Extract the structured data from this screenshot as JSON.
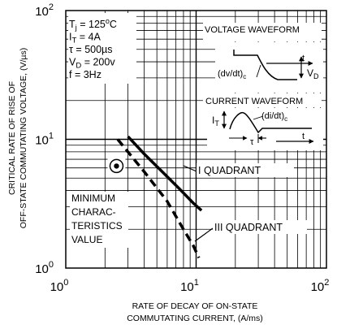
{
  "chart_data": {
    "type": "line",
    "x_scale": "log",
    "y_scale": "log",
    "xlim": [
      1,
      100
    ],
    "ylim": [
      1,
      100
    ],
    "grid": true,
    "x_ticks": [
      {
        "base": "10",
        "exp": "0",
        "value": 1
      },
      {
        "base": "10",
        "exp": "1",
        "value": 10
      },
      {
        "base": "10",
        "exp": "2",
        "value": 100
      }
    ],
    "y_ticks": [
      {
        "base": "10",
        "exp": "0",
        "value": 1
      },
      {
        "base": "10",
        "exp": "1",
        "value": 10
      },
      {
        "base": "10",
        "exp": "2",
        "value": 100
      }
    ],
    "xlabel": [
      "RATE OF DECAY OF ON-STATE",
      "COMMUTATING CURRENT, (A/ms)"
    ],
    "ylabel": [
      "CRITICAL RATE OF RISE OF",
      "OFF-STATE COMMUTATING VOLTAGE, (V/µs)"
    ],
    "conditions": [
      {
        "sym": "T",
        "sub": "j",
        "rest": " = 125",
        "sup": "o",
        "tail": "C"
      },
      {
        "sym": "I",
        "sub": "T",
        "rest": " = 4A",
        "sup": "",
        "tail": ""
      },
      {
        "sym": "τ",
        "sub": "",
        "rest": " = 500µs",
        "sup": "",
        "tail": ""
      },
      {
        "sym": "V",
        "sub": "D",
        "rest": " = 200v",
        "sup": "",
        "tail": ""
      },
      {
        "sym": "f",
        "sub": "",
        "rest": " = 3Hz",
        "sup": "",
        "tail": ""
      }
    ],
    "series": [
      {
        "name": "I QUADRANT",
        "style": "solid",
        "points": [
          [
            3.0,
            10.5
          ],
          [
            4.0,
            7.7
          ],
          [
            5.5,
            5.6
          ],
          [
            7.5,
            4.1
          ],
          [
            9.5,
            3.2
          ],
          [
            11.0,
            2.8
          ]
        ]
      },
      {
        "name": "III QUADRANT",
        "style": "dashed",
        "points": [
          [
            2.5,
            10.0
          ],
          [
            4.0,
            5.6
          ],
          [
            6.0,
            3.3
          ],
          [
            8.0,
            2.0
          ],
          [
            9.5,
            1.5
          ],
          [
            10.5,
            1.2
          ]
        ]
      }
    ],
    "marker": {
      "x": 2.45,
      "y": 6.2,
      "label": [
        "MINIMUM",
        "CHARAC-",
        "TERISTICS",
        "VALUE"
      ]
    },
    "inset": {
      "voltage_title": "VOLTAGE WAVEFORM",
      "current_title": "CURRENT WAVEFORM",
      "dvdt": {
        "main": "(dv/dt)",
        "sub": "c"
      },
      "didt": {
        "main": "(di/dt)",
        "sub": "c"
      },
      "vd": {
        "main": "V",
        "sub": "D"
      },
      "it": {
        "main": "I",
        "sub": "T"
      },
      "tau": "τ",
      "t": "t"
    }
  }
}
